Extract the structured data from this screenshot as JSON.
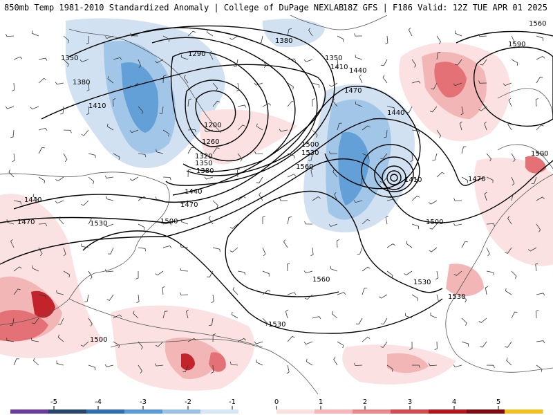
{
  "header": {
    "title_left": "850mb Temp 1981-2010 Standardized Anomaly | College of DuPage NEXLAB",
    "title_right": "18Z GFS | F186 Valid: 12Z TUE APR 01 2025"
  },
  "contour_labels": [
    "1590",
    "1560",
    "1500",
    "1470",
    "1440",
    "1410",
    "1380",
    "1350",
    "1320",
    "1290",
    "1260",
    "1200",
    "1530"
  ],
  "colorbar": {
    "ticks": [
      "-5",
      "-4",
      "-3",
      "-2",
      "-1",
      "0",
      "1",
      "2",
      "3",
      "4",
      "5"
    ],
    "colors": [
      "#6a3d9a",
      "#26466b",
      "#2f6fb0",
      "#5b9bd5",
      "#9cc3e6",
      "#d7e6f5",
      "#ffffff",
      "#fbe0e0",
      "#f4b6b6",
      "#e8888a",
      "#d24b4f",
      "#b0161c",
      "#7f0a10",
      "#f0c020"
    ]
  },
  "anomaly_colors": {
    "cold_light": "#cfe0f2",
    "cold_mid": "#9cc3e6",
    "cold_strong": "#5b9bd5",
    "warm_light": "#fbe0e0",
    "warm_mid": "#f2b3b3",
    "warm_strong": "#e26a6e",
    "warm_deep": "#c0181f"
  }
}
